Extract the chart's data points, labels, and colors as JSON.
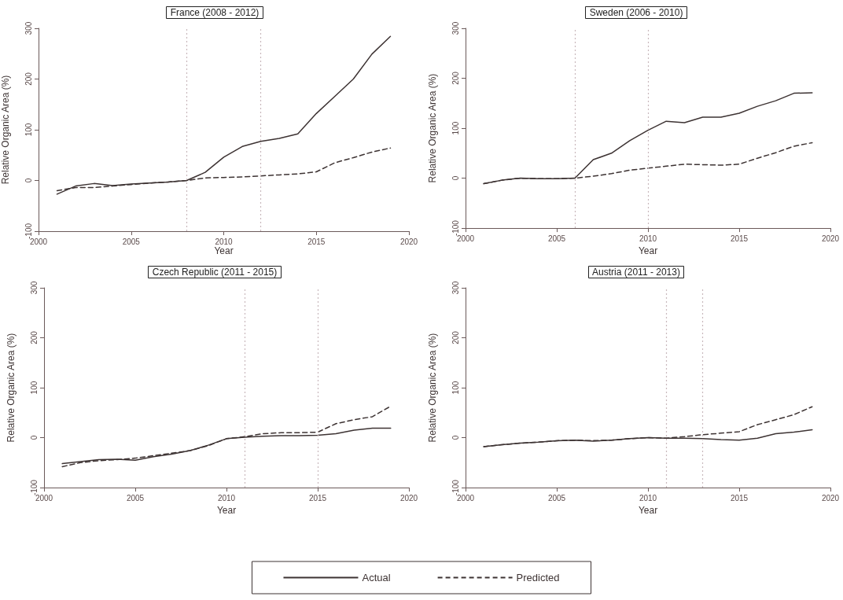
{
  "chart_data": [
    {
      "type": "line",
      "title": "France (2008 - 2012)",
      "xlabel": "Year",
      "ylabel": "Relative Organic Area (%)",
      "x": [
        2001,
        2002,
        2003,
        2004,
        2005,
        2006,
        2007,
        2008,
        2009,
        2010,
        2011,
        2012,
        2013,
        2014,
        2015,
        2016,
        2017,
        2018,
        2019
      ],
      "xlim": [
        2000,
        2020
      ],
      "xticks": [
        2000,
        2005,
        2010,
        2015,
        2020
      ],
      "ylim": [
        -100,
        300
      ],
      "yticks": [
        -100,
        0,
        100,
        200,
        300
      ],
      "grid": false,
      "marker": "none",
      "legend": "bottom",
      "series": [
        {
          "name": "Actual",
          "color": "#3d3333",
          "line_style": "solid",
          "values": [
            -27,
            -11,
            -6,
            -10,
            -7,
            -5,
            -3,
            0,
            16,
            46,
            67,
            77,
            83,
            92,
            132,
            166,
            200,
            249,
            284
          ]
        },
        {
          "name": "Predicted",
          "color": "#3d3333",
          "line_style": "dashed",
          "values": [
            -20,
            -14,
            -14,
            -11,
            -8,
            -5,
            -3,
            0,
            5,
            6,
            7,
            9,
            11,
            13,
            17,
            35,
            45,
            56,
            64
          ]
        }
      ],
      "ref_lines": [
        {
          "axis": "x",
          "value": 2008,
          "color": "#c8b8bc",
          "line_style": "dotted"
        },
        {
          "axis": "x",
          "value": 2012,
          "color": "#c8b8bc",
          "line_style": "dotted"
        }
      ]
    },
    {
      "type": "line",
      "title": "Sweden (2006 - 2010)",
      "xlabel": "Year",
      "ylabel": "Relative Organic Area (%)",
      "x": [
        2001,
        2002,
        2003,
        2004,
        2005,
        2006,
        2007,
        2008,
        2009,
        2010,
        2011,
        2012,
        2013,
        2014,
        2015,
        2016,
        2017,
        2018,
        2019
      ],
      "xlim": [
        2000,
        2020
      ],
      "xticks": [
        2000,
        2005,
        2010,
        2015,
        2020
      ],
      "ylim": [
        -100,
        300
      ],
      "yticks": [
        -100,
        0,
        100,
        200,
        300
      ],
      "grid": false,
      "marker": "none",
      "series": [
        {
          "color": "#3d3333",
          "line_style": "solid",
          "values": [
            -11,
            -4,
            0,
            -1,
            -1,
            0,
            37,
            50,
            75,
            96,
            114,
            111,
            122,
            122,
            130,
            144,
            155,
            170,
            171
          ]
        },
        {
          "color": "#3d3333",
          "line_style": "dashed",
          "values": [
            -11,
            -4,
            0,
            -1,
            -1,
            0,
            4,
            9,
            16,
            20,
            24,
            28,
            27,
            26,
            28,
            40,
            51,
            64,
            71
          ]
        }
      ],
      "ref_lines": [
        {
          "axis": "x",
          "value": 2006,
          "color": "#c8b8bc",
          "line_style": "dotted"
        },
        {
          "axis": "x",
          "value": 2010,
          "color": "#c8b8bc",
          "line_style": "dotted"
        }
      ]
    },
    {
      "type": "line",
      "title": "Czech Republic (2011 - 2015)",
      "xlabel": "Year",
      "ylabel": "Relative Organic Area (%)",
      "x": [
        2001,
        2002,
        2003,
        2004,
        2005,
        2006,
        2007,
        2008,
        2009,
        2010,
        2011,
        2012,
        2013,
        2014,
        2015,
        2016,
        2017,
        2018,
        2019
      ],
      "xlim": [
        2000,
        2020
      ],
      "xticks": [
        2000,
        2005,
        2010,
        2015,
        2020
      ],
      "ylim": [
        -100,
        300
      ],
      "yticks": [
        -100,
        0,
        100,
        200,
        300
      ],
      "grid": false,
      "marker": "none",
      "series": [
        {
          "color": "#3d3333",
          "line_style": "solid",
          "values": [
            -52,
            -48,
            -44,
            -43,
            -45,
            -38,
            -33,
            -26,
            -15,
            -2,
            1,
            3,
            4,
            4,
            5,
            8,
            15,
            19,
            19
          ]
        },
        {
          "color": "#3d3333",
          "line_style": "dashed",
          "values": [
            -58,
            -50,
            -46,
            -44,
            -41,
            -36,
            -31,
            -26,
            -16,
            -2,
            2,
            8,
            10,
            10,
            11,
            28,
            36,
            42,
            63
          ]
        }
      ],
      "ref_lines": [
        {
          "axis": "x",
          "value": 2011,
          "color": "#c8b8bc",
          "line_style": "dotted"
        },
        {
          "axis": "x",
          "value": 2015,
          "color": "#c8b8bc",
          "line_style": "dotted"
        }
      ]
    },
    {
      "type": "line",
      "title": "Austria (2011 - 2013)",
      "xlabel": "Year",
      "ylabel": "Relative Organic Area (%)",
      "x": [
        2001,
        2002,
        2003,
        2004,
        2005,
        2006,
        2007,
        2008,
        2009,
        2010,
        2011,
        2012,
        2013,
        2014,
        2015,
        2016,
        2017,
        2018,
        2019
      ],
      "xlim": [
        2000,
        2020
      ],
      "xticks": [
        2000,
        2005,
        2010,
        2015,
        2020
      ],
      "ylim": [
        -100,
        300
      ],
      "yticks": [
        -100,
        0,
        100,
        200,
        300
      ],
      "grid": false,
      "marker": "none",
      "series": [
        {
          "color": "#3d3333",
          "line_style": "solid",
          "values": [
            -18,
            -14,
            -11,
            -9,
            -6,
            -5,
            -7,
            -5,
            -2,
            0,
            -1,
            -1,
            -2,
            -4,
            -5,
            -1,
            8,
            11,
            16
          ]
        },
        {
          "color": "#3d3333",
          "line_style": "dashed",
          "values": [
            -18,
            -14,
            -11,
            -9,
            -6,
            -5,
            -6,
            -5,
            -2,
            0,
            -1,
            2,
            6,
            9,
            12,
            26,
            36,
            46,
            62
          ]
        }
      ],
      "ref_lines": [
        {
          "axis": "x",
          "value": 2011,
          "color": "#c8b8bc",
          "line_style": "dotted"
        },
        {
          "axis": "x",
          "value": 2013,
          "color": "#c8b8bc",
          "line_style": "dotted"
        }
      ]
    }
  ]
}
